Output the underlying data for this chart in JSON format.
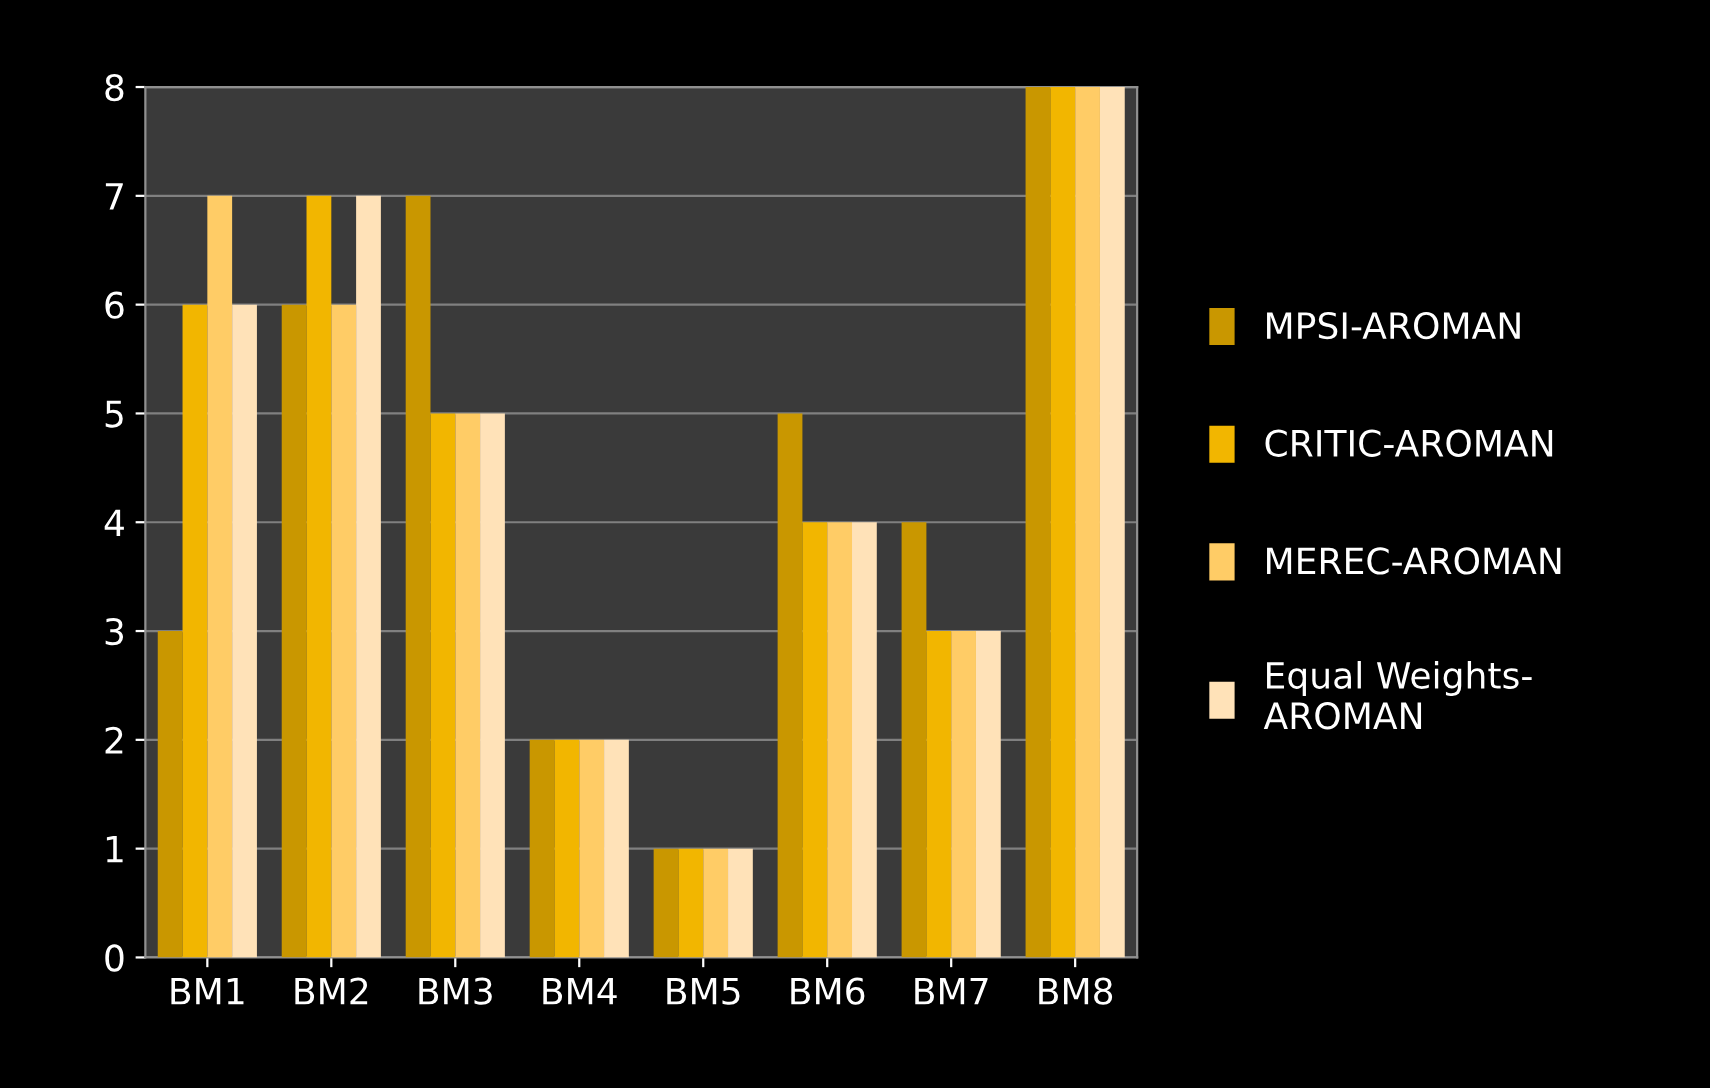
{
  "chart_data": {
    "type": "bar",
    "categories": [
      "BM1",
      "BM2",
      "BM3",
      "BM4",
      "BM5",
      "BM6",
      "BM7",
      "BM8"
    ],
    "series": [
      {
        "name": "MPSI-AROMAN",
        "color": "#c99700",
        "values": [
          3,
          6,
          7,
          2,
          1,
          5,
          4,
          8
        ]
      },
      {
        "name": "CRITIC-AROMAN",
        "color": "#f2b600",
        "values": [
          6,
          7,
          5,
          2,
          1,
          4,
          3,
          8
        ]
      },
      {
        "name": "MEREC-AROMAN",
        "color": "#ffcc66",
        "values": [
          7,
          6,
          5,
          2,
          1,
          4,
          3,
          8
        ]
      },
      {
        "name": "Equal Weights-\nAROMAN",
        "color": "#ffe2b8",
        "values": [
          6,
          7,
          5,
          2,
          1,
          4,
          3,
          8
        ]
      }
    ],
    "ylim": [
      0,
      8
    ],
    "yticks": [
      0,
      1,
      2,
      3,
      4,
      5,
      6,
      7,
      8
    ],
    "grid": "y",
    "legend": "right"
  }
}
